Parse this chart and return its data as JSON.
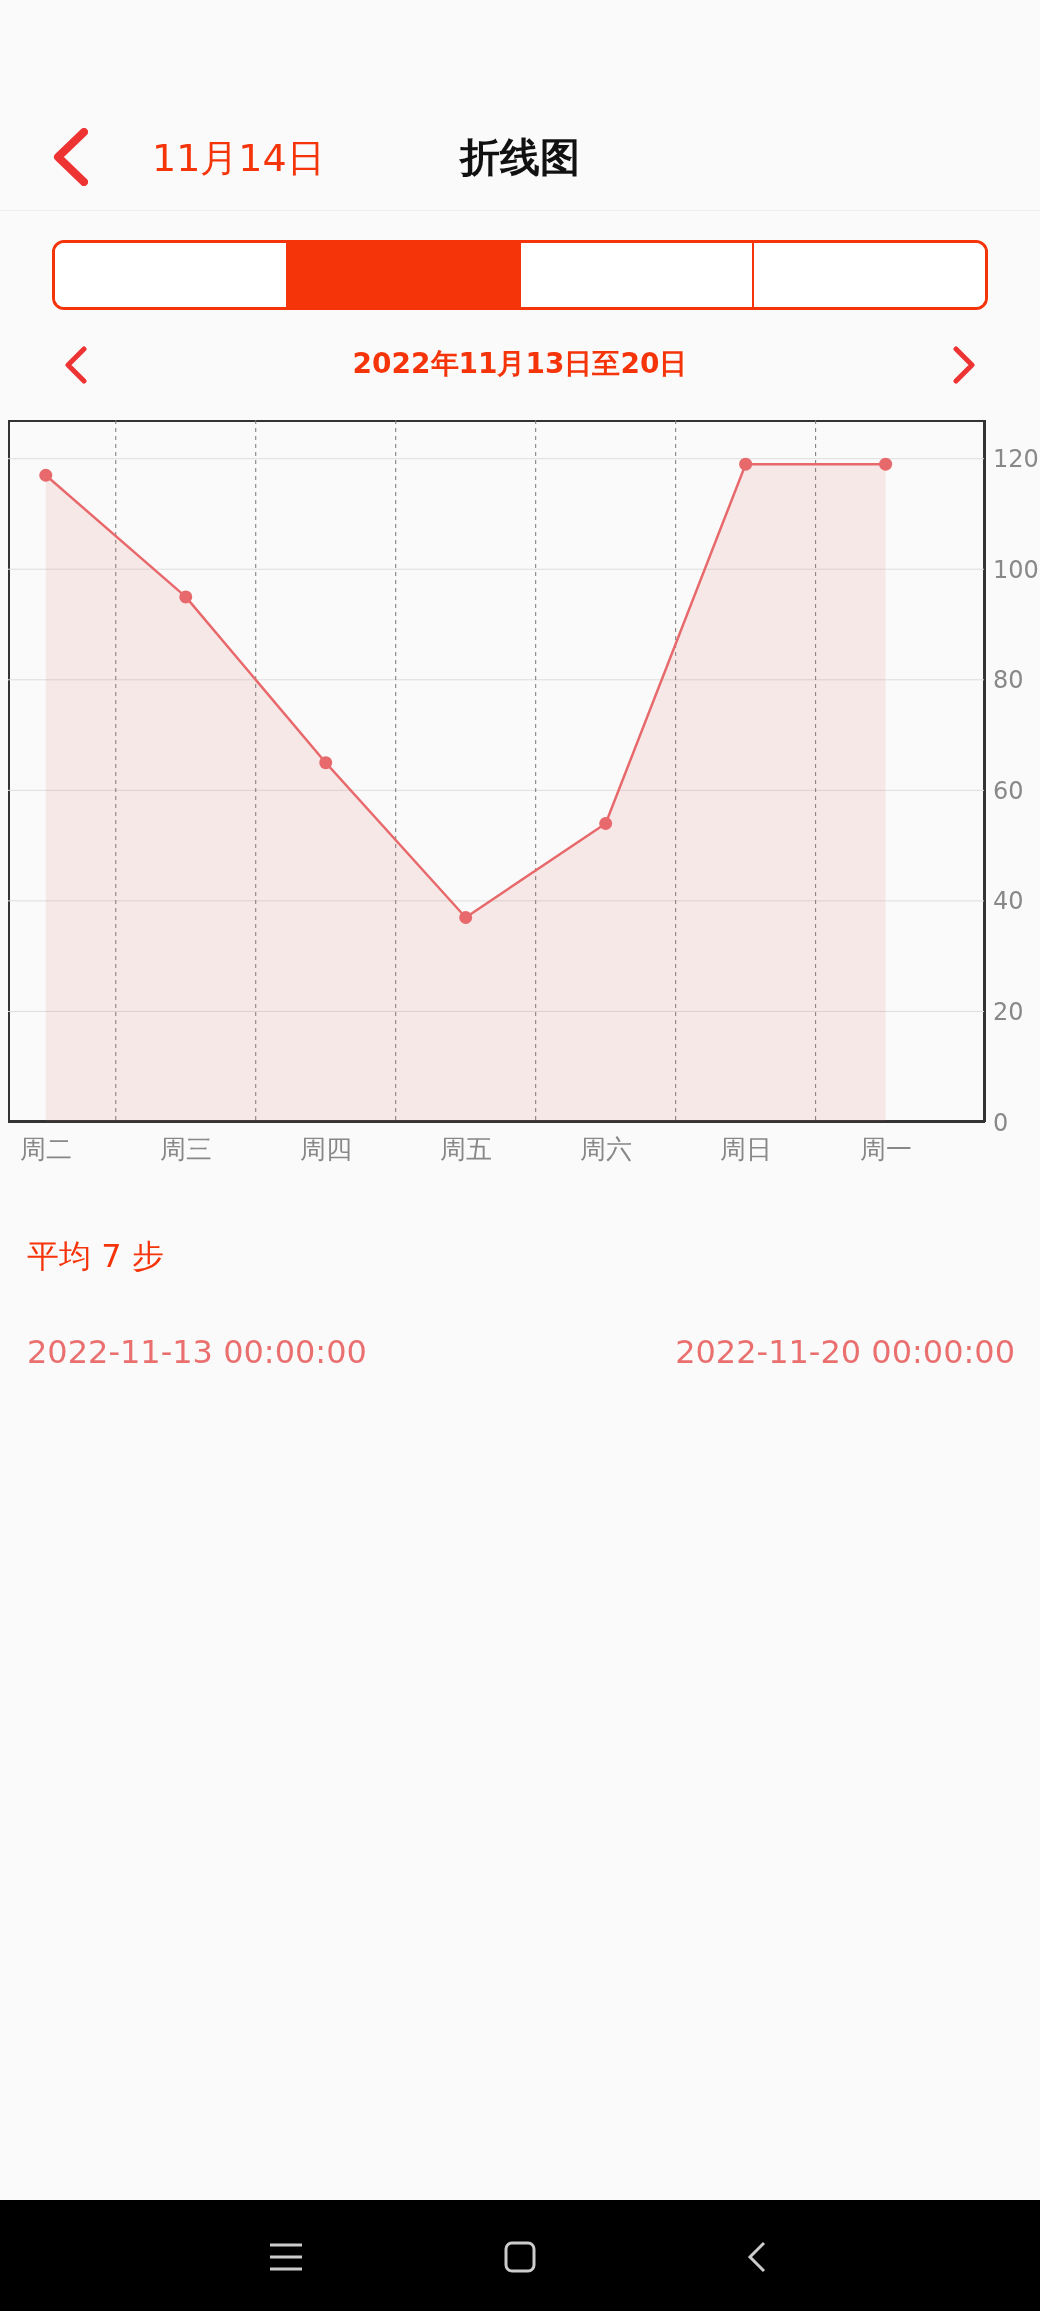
{
  "chart_data": {
    "type": "area",
    "title": "折线图",
    "subtitle": "2022年11月13日至20日",
    "annotations": [
      "11月14日",
      "平均 7 步",
      "2022-11-13 00:00:00",
      "2022-11-20 00:00:00"
    ],
    "categories": [
      "周二",
      "周三",
      "周四",
      "周五",
      "周六",
      "周日",
      "周一"
    ],
    "series": [
      {
        "color": "#e8696b",
        "values": [
          117,
          95,
          65,
          37,
          54,
          119,
          119
        ]
      }
    ],
    "ylim": [
      0,
      127
    ],
    "yticks": [
      0,
      20,
      40,
      60,
      80,
      100,
      120
    ],
    "grid": true,
    "marker": "circle",
    "line_style": "solid"
  }
}
